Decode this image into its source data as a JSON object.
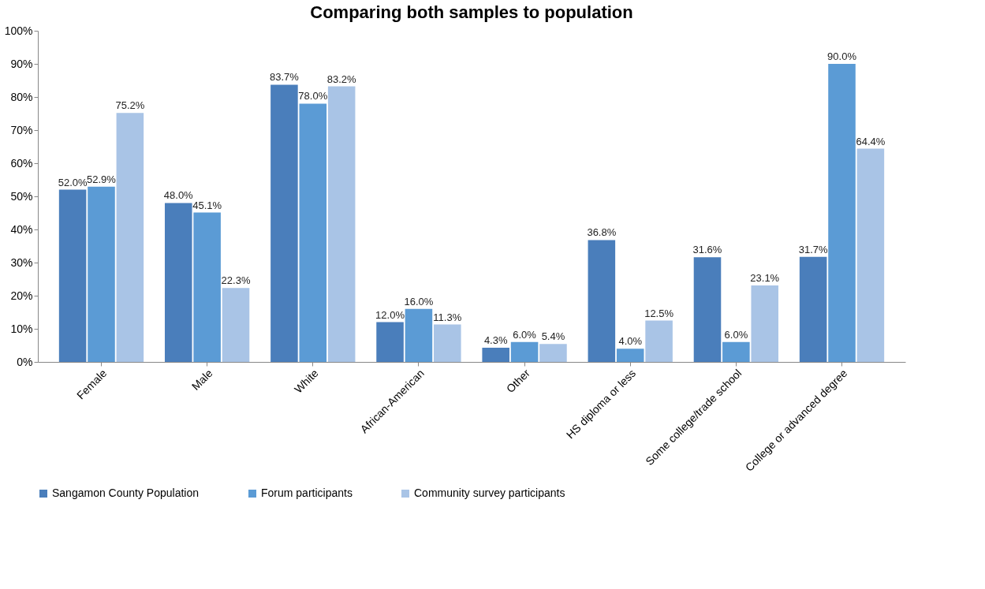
{
  "chart_data": {
    "type": "bar",
    "title": "Comparing both samples to population",
    "categories": [
      "Female",
      "Male",
      "White",
      "African-American",
      "Other",
      "HS diploma or less",
      "Some college/trade school",
      "College or advanced degree"
    ],
    "series": [
      {
        "name": "Sangamon County Population",
        "color": "#4a7ebb",
        "values": [
          52.0,
          48.0,
          83.7,
          12.0,
          4.3,
          36.8,
          31.6,
          31.7
        ],
        "value_labels": [
          "52.0%",
          "48.0%",
          "83.7%",
          "12.0%",
          "4.3%",
          "36.8%",
          "31.6%",
          "31.7%"
        ]
      },
      {
        "name": "Forum participants",
        "color": "#5b9bd5",
        "values": [
          52.9,
          45.1,
          78.0,
          16.0,
          6.0,
          4.0,
          6.0,
          90.0
        ],
        "value_labels": [
          "52.9%",
          "45.1%",
          "78.0%",
          "16.0%",
          "6.0%",
          "4.0%",
          "6.0%",
          "90.0%"
        ]
      },
      {
        "name": "Community survey participants",
        "color": "#a9c4e6",
        "values": [
          75.2,
          22.3,
          83.2,
          11.3,
          5.4,
          12.5,
          23.1,
          64.4
        ],
        "value_labels": [
          "75.2%",
          "22.3%",
          "83.2%",
          "11.3%",
          "5.4%",
          "12.5%",
          "23.1%",
          "64.4%"
        ]
      }
    ],
    "ylim": [
      0,
      100
    ],
    "yticks": [
      {
        "value": 0,
        "label": "0%"
      },
      {
        "value": 10,
        "label": "10%"
      },
      {
        "value": 20,
        "label": "20%"
      },
      {
        "value": 30,
        "label": "30%"
      },
      {
        "value": 40,
        "label": "40%"
      },
      {
        "value": 50,
        "label": "50%"
      },
      {
        "value": 60,
        "label": "60%"
      },
      {
        "value": 70,
        "label": "70%"
      },
      {
        "value": 80,
        "label": "80%"
      },
      {
        "value": 90,
        "label": "90%"
      },
      {
        "value": 100,
        "label": "100%"
      }
    ],
    "grid": false,
    "legend": "bottom"
  }
}
